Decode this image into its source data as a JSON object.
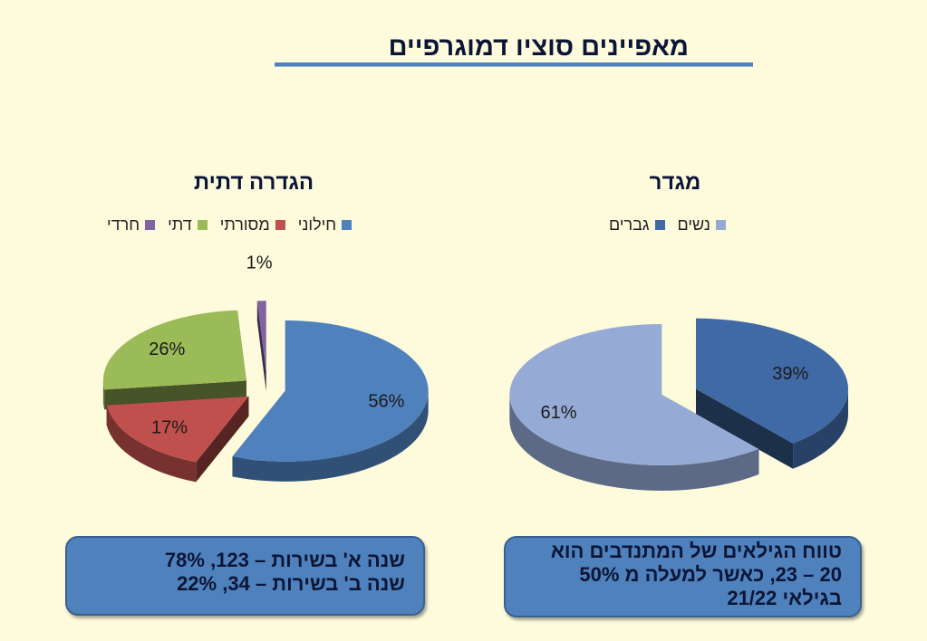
{
  "slide": {
    "title": "מאפיינים סוציו דמוגרפיים"
  },
  "chart_data": [
    {
      "type": "pie",
      "title": "הגדרה דתית",
      "categories": [
        "חילוני",
        "מסורתי",
        "דתי",
        "חרדי"
      ],
      "values": [
        56,
        17,
        26,
        1
      ],
      "labels": [
        "56%",
        "17%",
        "26%",
        "1%"
      ],
      "colors": [
        "#4f81bd",
        "#c0504d",
        "#9bbb59",
        "#8064a2"
      ],
      "legend_position": "top",
      "style": "3d-exploded"
    },
    {
      "type": "pie",
      "title": "מגדר",
      "categories": [
        "גברים",
        "נשים"
      ],
      "values": [
        39,
        61
      ],
      "labels": [
        "39%",
        "61%"
      ],
      "colors": [
        "#3f6aa5",
        "#95abd6"
      ],
      "legend_position": "top",
      "style": "3d-exploded"
    }
  ],
  "notes": {
    "left": {
      "line1": "שנה א' בשירות – 123, 78%",
      "line2": "שנה ב' בשירות – 34, 22%"
    },
    "right": {
      "line1": "טווח הגילאים של המתנדבים הוא",
      "line2": "20 – 23, כאשר למעלה מ 50%",
      "line3": "בגילאי 21/22"
    }
  }
}
